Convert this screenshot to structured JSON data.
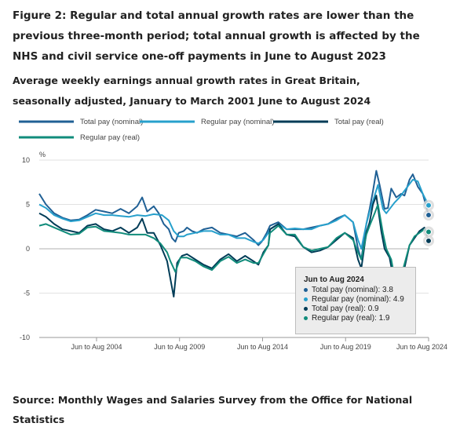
{
  "chart_data": {
    "type": "line",
    "title": "Figure 2: Regular and total annual growth rates are lower than the previous three-month period; total annual growth is affected by the NHS and civil service one-off payments in June to August 2023",
    "subtitle": "Average weekly earnings annual growth rates in Great Britain, seasonally adjusted, January to March 2001 June to August 2024",
    "ylabel": "%",
    "xlabel": "",
    "ylim": [
      -10,
      10
    ],
    "yticks": [
      "10",
      "5",
      "0",
      "-5",
      "-10"
    ],
    "xlim": [
      2001.1,
      2024.55
    ],
    "xticks": [
      {
        "x": 2004.55,
        "label": "Jun to Aug 2004"
      },
      {
        "x": 2009.55,
        "label": "Jun to Aug 2009"
      },
      {
        "x": 2014.55,
        "label": "Jun to Aug 2014"
      },
      {
        "x": 2019.55,
        "label": "Jun to Aug 2019"
      },
      {
        "x": 2024.55,
        "label": "Jun to Aug 2024"
      }
    ],
    "grid": true,
    "legend_position": "top",
    "source": "Source: Monthly Wages and Salaries Survey from the Office for National Statistics",
    "tooltip": {
      "title": "Jun to Aug 2024",
      "items": [
        {
          "label": "Total pay (nominal): 3.8",
          "color": "#206095"
        },
        {
          "label": "Regular pay (nominal): 4.9",
          "color": "#27a0cc"
        },
        {
          "label": "Total pay (real): 0.9",
          "color": "#003c57"
        },
        {
          "label": "Regular pay (real): 1.9",
          "color": "#118c7b"
        }
      ]
    },
    "series": [
      {
        "name": "Total pay (nominal)",
        "color": "#206095",
        "points": [
          [
            2001.1,
            6.2
          ],
          [
            2001.5,
            5.0
          ],
          [
            2002.0,
            4.0
          ],
          [
            2002.5,
            3.5
          ],
          [
            2003.0,
            3.2
          ],
          [
            2003.5,
            3.3
          ],
          [
            2004.0,
            3.8
          ],
          [
            2004.5,
            4.4
          ],
          [
            2005.0,
            4.2
          ],
          [
            2005.5,
            4.0
          ],
          [
            2006.0,
            4.5
          ],
          [
            2006.5,
            4.0
          ],
          [
            2007.0,
            4.8
          ],
          [
            2007.3,
            5.8
          ],
          [
            2007.6,
            4.2
          ],
          [
            2008.0,
            4.8
          ],
          [
            2008.3,
            4.0
          ],
          [
            2008.6,
            2.8
          ],
          [
            2008.9,
            2.2
          ],
          [
            2009.1,
            1.2
          ],
          [
            2009.3,
            0.8
          ],
          [
            2009.5,
            1.8
          ],
          [
            2009.8,
            2.0
          ],
          [
            2010.0,
            2.4
          ],
          [
            2010.3,
            2.0
          ],
          [
            2010.6,
            1.8
          ],
          [
            2011.0,
            2.2
          ],
          [
            2011.5,
            2.4
          ],
          [
            2012.0,
            1.8
          ],
          [
            2012.5,
            1.6
          ],
          [
            2013.0,
            1.4
          ],
          [
            2013.5,
            1.8
          ],
          [
            2014.0,
            1.0
          ],
          [
            2014.3,
            0.4
          ],
          [
            2014.5,
            0.8
          ],
          [
            2014.8,
            1.8
          ],
          [
            2015.0,
            2.6
          ],
          [
            2015.5,
            3.0
          ],
          [
            2016.0,
            2.2
          ],
          [
            2016.5,
            2.2
          ],
          [
            2017.0,
            2.2
          ],
          [
            2017.5,
            2.4
          ],
          [
            2018.0,
            2.6
          ],
          [
            2018.5,
            2.8
          ],
          [
            2019.0,
            3.4
          ],
          [
            2019.5,
            3.8
          ],
          [
            2020.0,
            3.0
          ],
          [
            2020.3,
            0.0
          ],
          [
            2020.5,
            -1.2
          ],
          [
            2020.8,
            2.8
          ],
          [
            2021.0,
            4.5
          ],
          [
            2021.2,
            6.5
          ],
          [
            2021.4,
            8.8
          ],
          [
            2021.6,
            7.2
          ],
          [
            2021.9,
            4.5
          ],
          [
            2022.1,
            4.6
          ],
          [
            2022.3,
            6.8
          ],
          [
            2022.6,
            5.8
          ],
          [
            2022.9,
            6.2
          ],
          [
            2023.1,
            6.0
          ],
          [
            2023.4,
            7.8
          ],
          [
            2023.6,
            8.4
          ],
          [
            2023.9,
            7.0
          ],
          [
            2024.2,
            6.2
          ],
          [
            2024.55,
            3.8
          ]
        ]
      },
      {
        "name": "Regular pay (nominal)",
        "color": "#27a0cc",
        "points": [
          [
            2001.1,
            5.0
          ],
          [
            2001.5,
            4.6
          ],
          [
            2002.0,
            3.8
          ],
          [
            2002.5,
            3.4
          ],
          [
            2003.0,
            3.1
          ],
          [
            2003.5,
            3.2
          ],
          [
            2004.0,
            3.6
          ],
          [
            2004.5,
            4.0
          ],
          [
            2005.0,
            3.8
          ],
          [
            2005.5,
            3.8
          ],
          [
            2006.0,
            3.7
          ],
          [
            2006.5,
            3.6
          ],
          [
            2007.0,
            3.8
          ],
          [
            2007.5,
            3.7
          ],
          [
            2008.0,
            3.9
          ],
          [
            2008.5,
            3.8
          ],
          [
            2008.9,
            3.2
          ],
          [
            2009.2,
            2.0
          ],
          [
            2009.5,
            1.4
          ],
          [
            2009.8,
            1.4
          ],
          [
            2010.0,
            1.6
          ],
          [
            2010.5,
            1.8
          ],
          [
            2011.0,
            2.0
          ],
          [
            2011.5,
            2.0
          ],
          [
            2012.0,
            1.6
          ],
          [
            2012.5,
            1.6
          ],
          [
            2013.0,
            1.2
          ],
          [
            2013.5,
            1.2
          ],
          [
            2014.0,
            0.8
          ],
          [
            2014.3,
            0.6
          ],
          [
            2014.6,
            1.0
          ],
          [
            2014.9,
            1.8
          ],
          [
            2015.0,
            2.2
          ],
          [
            2015.5,
            2.8
          ],
          [
            2016.0,
            2.2
          ],
          [
            2016.5,
            2.3
          ],
          [
            2017.0,
            2.2
          ],
          [
            2017.5,
            2.2
          ],
          [
            2018.0,
            2.6
          ],
          [
            2018.5,
            2.8
          ],
          [
            2019.0,
            3.2
          ],
          [
            2019.5,
            3.8
          ],
          [
            2020.0,
            3.0
          ],
          [
            2020.3,
            1.0
          ],
          [
            2020.5,
            0.0
          ],
          [
            2020.8,
            2.8
          ],
          [
            2021.0,
            4.2
          ],
          [
            2021.3,
            6.0
          ],
          [
            2021.5,
            7.2
          ],
          [
            2021.8,
            4.5
          ],
          [
            2022.0,
            4.0
          ],
          [
            2022.5,
            5.2
          ],
          [
            2022.8,
            5.8
          ],
          [
            2023.2,
            6.8
          ],
          [
            2023.6,
            7.8
          ],
          [
            2023.9,
            7.6
          ],
          [
            2024.2,
            6.2
          ],
          [
            2024.55,
            4.9
          ]
        ]
      },
      {
        "name": "Total pay (real)",
        "color": "#003c57",
        "points": [
          [
            2001.1,
            4.0
          ],
          [
            2001.5,
            3.6
          ],
          [
            2002.0,
            2.8
          ],
          [
            2002.5,
            2.2
          ],
          [
            2003.0,
            2.0
          ],
          [
            2003.5,
            1.8
          ],
          [
            2004.0,
            2.6
          ],
          [
            2004.5,
            2.8
          ],
          [
            2005.0,
            2.2
          ],
          [
            2005.5,
            2.0
          ],
          [
            2006.0,
            2.4
          ],
          [
            2006.5,
            1.8
          ],
          [
            2007.0,
            2.4
          ],
          [
            2007.3,
            3.4
          ],
          [
            2007.6,
            1.8
          ],
          [
            2008.0,
            1.8
          ],
          [
            2008.4,
            0.4
          ],
          [
            2008.8,
            -1.4
          ],
          [
            2009.0,
            -3.4
          ],
          [
            2009.2,
            -5.4
          ],
          [
            2009.4,
            -1.6
          ],
          [
            2009.7,
            -0.8
          ],
          [
            2010.0,
            -0.6
          ],
          [
            2010.5,
            -1.2
          ],
          [
            2011.0,
            -1.8
          ],
          [
            2011.5,
            -2.2
          ],
          [
            2012.0,
            -1.2
          ],
          [
            2012.5,
            -0.6
          ],
          [
            2013.0,
            -1.4
          ],
          [
            2013.5,
            -0.8
          ],
          [
            2014.0,
            -1.4
          ],
          [
            2014.3,
            -1.8
          ],
          [
            2014.6,
            -0.4
          ],
          [
            2014.9,
            0.4
          ],
          [
            2015.0,
            2.2
          ],
          [
            2015.5,
            2.8
          ],
          [
            2016.0,
            1.6
          ],
          [
            2016.5,
            1.4
          ],
          [
            2017.0,
            0.2
          ],
          [
            2017.5,
            -0.4
          ],
          [
            2018.0,
            -0.2
          ],
          [
            2018.5,
            0.2
          ],
          [
            2019.0,
            1.0
          ],
          [
            2019.5,
            1.8
          ],
          [
            2020.0,
            1.2
          ],
          [
            2020.3,
            -1.2
          ],
          [
            2020.5,
            -2.2
          ],
          [
            2020.8,
            1.8
          ],
          [
            2021.0,
            3.0
          ],
          [
            2021.2,
            5.0
          ],
          [
            2021.4,
            6.0
          ],
          [
            2021.7,
            2.0
          ],
          [
            2021.9,
            0.0
          ],
          [
            2022.2,
            -1.0
          ],
          [
            2022.5,
            -4.0
          ],
          [
            2022.8,
            -5.0
          ],
          [
            2023.0,
            -3.0
          ],
          [
            2023.4,
            0.4
          ],
          [
            2023.7,
            1.2
          ],
          [
            2024.0,
            2.0
          ],
          [
            2024.3,
            2.4
          ],
          [
            2024.55,
            0.9
          ]
        ]
      },
      {
        "name": "Regular pay (real)",
        "color": "#118c7b",
        "points": [
          [
            2001.1,
            2.6
          ],
          [
            2001.5,
            2.8
          ],
          [
            2002.0,
            2.4
          ],
          [
            2002.5,
            2.0
          ],
          [
            2003.0,
            1.6
          ],
          [
            2003.5,
            1.7
          ],
          [
            2004.0,
            2.4
          ],
          [
            2004.5,
            2.5
          ],
          [
            2005.0,
            2.0
          ],
          [
            2005.5,
            1.9
          ],
          [
            2006.0,
            1.8
          ],
          [
            2006.5,
            1.6
          ],
          [
            2007.0,
            1.6
          ],
          [
            2007.5,
            1.6
          ],
          [
            2008.0,
            1.2
          ],
          [
            2008.4,
            0.6
          ],
          [
            2008.8,
            -0.4
          ],
          [
            2009.0,
            -1.4
          ],
          [
            2009.3,
            -2.6
          ],
          [
            2009.6,
            -1.0
          ],
          [
            2010.0,
            -1.0
          ],
          [
            2010.5,
            -1.4
          ],
          [
            2011.0,
            -2.0
          ],
          [
            2011.5,
            -2.4
          ],
          [
            2012.0,
            -1.4
          ],
          [
            2012.5,
            -0.9
          ],
          [
            2013.0,
            -1.6
          ],
          [
            2013.5,
            -1.2
          ],
          [
            2014.0,
            -1.6
          ],
          [
            2014.3,
            -1.6
          ],
          [
            2014.6,
            -0.6
          ],
          [
            2014.9,
            0.4
          ],
          [
            2015.0,
            1.8
          ],
          [
            2015.5,
            2.6
          ],
          [
            2016.0,
            1.6
          ],
          [
            2016.5,
            1.6
          ],
          [
            2017.0,
            0.2
          ],
          [
            2017.5,
            -0.2
          ],
          [
            2018.0,
            0.0
          ],
          [
            2018.5,
            0.2
          ],
          [
            2019.0,
            1.2
          ],
          [
            2019.5,
            1.8
          ],
          [
            2020.0,
            1.0
          ],
          [
            2020.3,
            -0.4
          ],
          [
            2020.5,
            -1.2
          ],
          [
            2020.8,
            1.6
          ],
          [
            2021.0,
            2.6
          ],
          [
            2021.3,
            4.0
          ],
          [
            2021.5,
            5.0
          ],
          [
            2021.8,
            1.8
          ],
          [
            2022.0,
            0.0
          ],
          [
            2022.3,
            -1.2
          ],
          [
            2022.5,
            -3.2
          ],
          [
            2022.8,
            -4.2
          ],
          [
            2023.0,
            -2.4
          ],
          [
            2023.4,
            0.4
          ],
          [
            2023.7,
            1.4
          ],
          [
            2024.0,
            1.8
          ],
          [
            2024.3,
            2.2
          ],
          [
            2024.55,
            1.9
          ]
        ]
      }
    ]
  }
}
